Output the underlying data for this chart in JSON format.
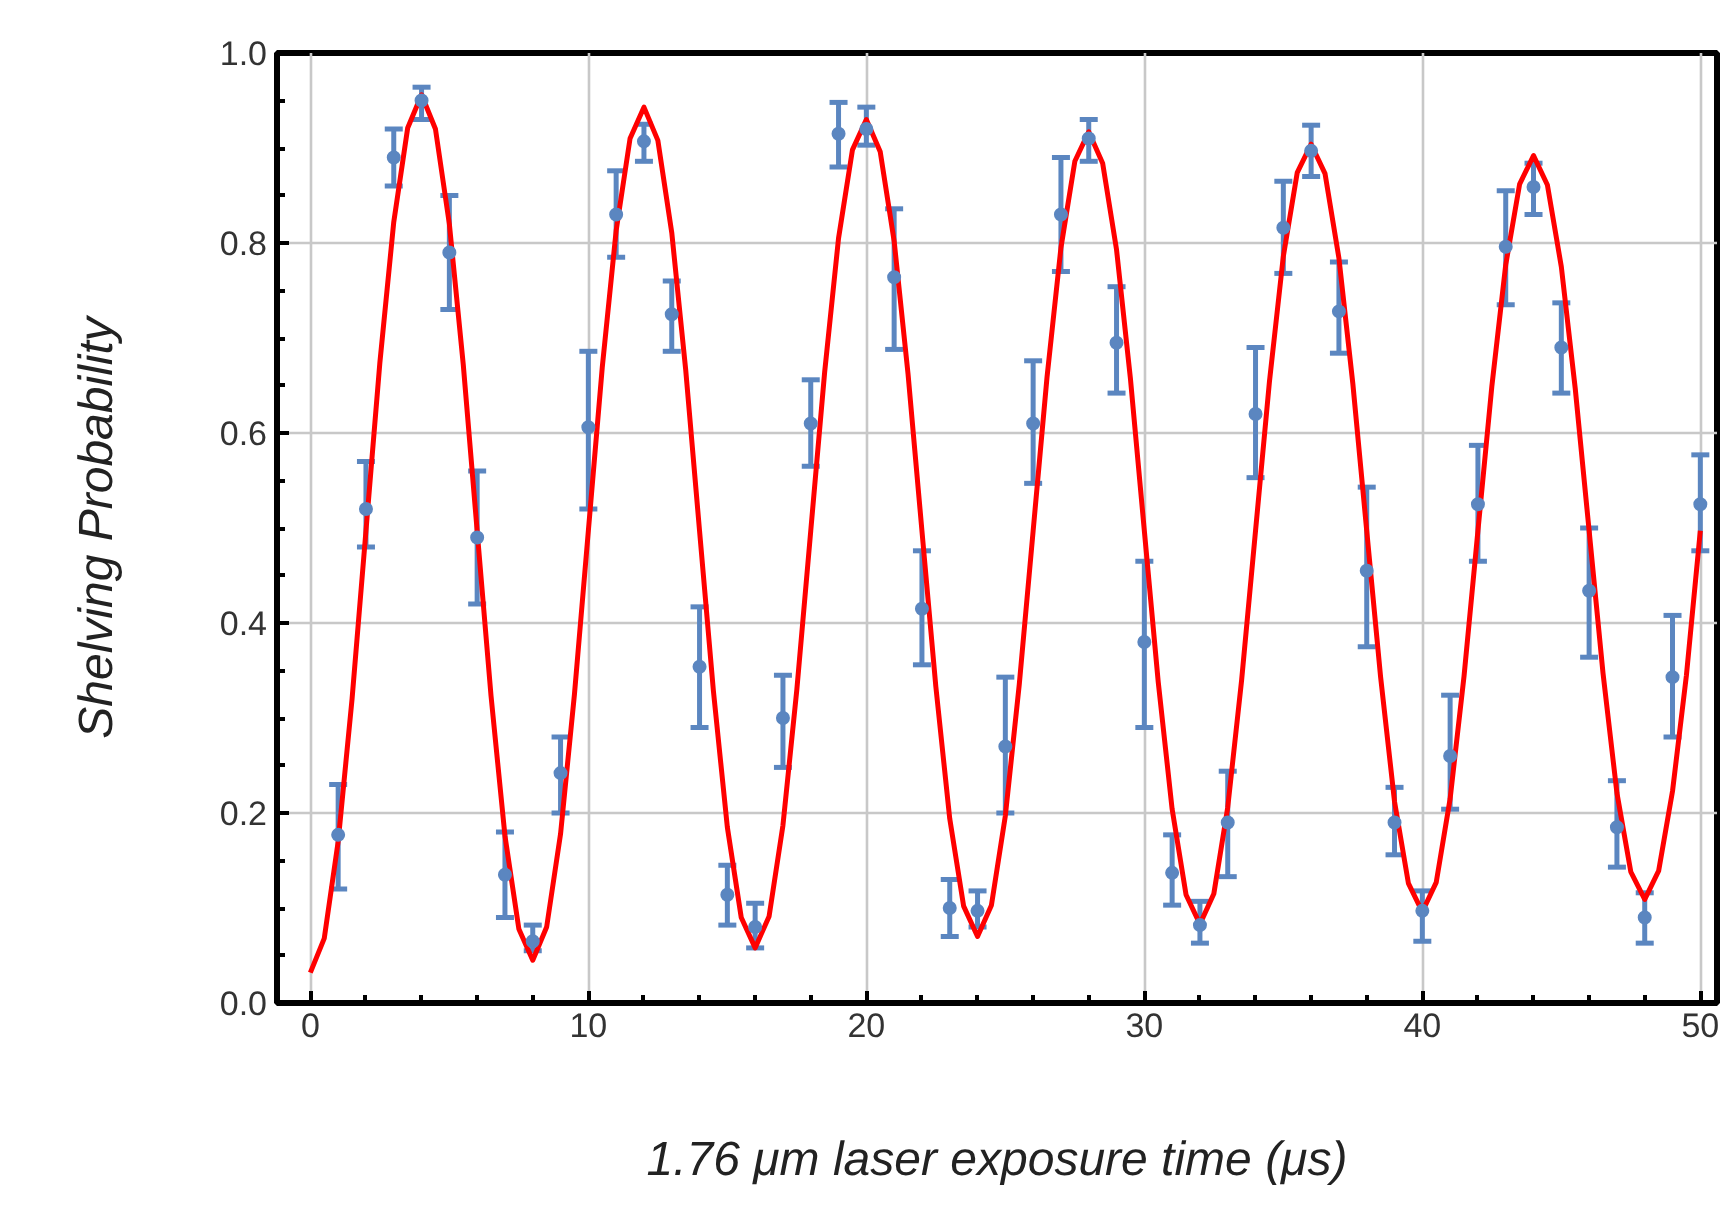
{
  "chart_data": {
    "type": "scatter",
    "xlabel": "1.76 μm laser exposure time (μs)",
    "ylabel": "Shelving Probability",
    "xlim": [
      -1.2,
      50.6
    ],
    "ylim": [
      0,
      1
    ],
    "xticks": [
      0,
      10,
      20,
      30,
      40,
      50
    ],
    "yticks": [
      {
        "value": 0,
        "label": "0.0"
      },
      {
        "value": 0.2,
        "label": "0.2"
      },
      {
        "value": 0.4,
        "label": "0.4"
      },
      {
        "value": 0.6,
        "label": "0.6"
      },
      {
        "value": 0.8,
        "label": "0.8"
      },
      {
        "value": 1,
        "label": "1.0"
      }
    ],
    "grid": true,
    "marker": "circle",
    "series": [
      {
        "color": "#5b86c0",
        "x": [
          1,
          2,
          3,
          4,
          5,
          6,
          7,
          8,
          9,
          10,
          11,
          12,
          13,
          14,
          15,
          16,
          17,
          18,
          19,
          20,
          21,
          22,
          23,
          24,
          25,
          26,
          27,
          28,
          29,
          30,
          31,
          32,
          33,
          34,
          35,
          36,
          37,
          38,
          39,
          40,
          41,
          42,
          43,
          44,
          45,
          46,
          47,
          48,
          49,
          50
        ],
        "values": [
          0.177,
          0.52,
          0.89,
          0.95,
          0.79,
          0.49,
          0.135,
          0.065,
          0.242,
          0.606,
          0.83,
          0.907,
          0.725,
          0.354,
          0.114,
          0.08,
          0.3,
          0.61,
          0.915,
          0.92,
          0.764,
          0.415,
          0.1,
          0.097,
          0.27,
          0.61,
          0.83,
          0.91,
          0.695,
          0.38,
          0.137,
          0.082,
          0.19,
          0.62,
          0.816,
          0.897,
          0.728,
          0.455,
          0.19,
          0.097,
          0.26,
          0.525,
          0.796,
          0.859,
          0.69,
          0.434,
          0.185,
          0.09,
          0.343,
          0.525
        ],
        "errors": [
          [
            0.12,
            0.23
          ],
          [
            0.48,
            0.57
          ],
          [
            0.86,
            0.92
          ],
          [
            0.93,
            0.964
          ],
          [
            0.73,
            0.85
          ],
          [
            0.42,
            0.56
          ],
          [
            0.09,
            0.18
          ],
          [
            0.055,
            0.082
          ],
          [
            0.2,
            0.28
          ],
          [
            0.52,
            0.686
          ],
          [
            0.785,
            0.876
          ],
          [
            0.886,
            0.925
          ],
          [
            0.686,
            0.76
          ],
          [
            0.29,
            0.417
          ],
          [
            0.082,
            0.145
          ],
          [
            0.058,
            0.105
          ],
          [
            0.248,
            0.345
          ],
          [
            0.565,
            0.656
          ],
          [
            0.88,
            0.948
          ],
          [
            0.903,
            0.943
          ],
          [
            0.688,
            0.836
          ],
          [
            0.356,
            0.476
          ],
          [
            0.07,
            0.13
          ],
          [
            0.08,
            0.118
          ],
          [
            0.2,
            0.343
          ],
          [
            0.547,
            0.676
          ],
          [
            0.77,
            0.89
          ],
          [
            0.886,
            0.93
          ],
          [
            0.642,
            0.754
          ],
          [
            0.29,
            0.465
          ],
          [
            0.103,
            0.177
          ],
          [
            0.063,
            0.107
          ],
          [
            0.133,
            0.244
          ],
          [
            0.553,
            0.69
          ],
          [
            0.768,
            0.865
          ],
          [
            0.87,
            0.924
          ],
          [
            0.684,
            0.78
          ],
          [
            0.375,
            0.543
          ],
          [
            0.156,
            0.227
          ],
          [
            0.065,
            0.118
          ],
          [
            0.204,
            0.324
          ],
          [
            0.465,
            0.587
          ],
          [
            0.735,
            0.855
          ],
          [
            0.83,
            0.884
          ],
          [
            0.642,
            0.737
          ],
          [
            0.364,
            0.5
          ],
          [
            0.143,
            0.234
          ],
          [
            0.063,
            0.116
          ],
          [
            0.28,
            0.408
          ],
          [
            0.476,
            0.577
          ]
        ]
      },
      {
        "type": "line",
        "color": "#ff0000",
        "marker": "none",
        "line_style": "solid",
        "x": [
          0,
          0.5,
          1,
          1.5,
          2,
          2.5,
          3,
          3.5,
          4,
          4.5,
          5,
          5.5,
          6,
          6.5,
          7,
          7.5,
          8,
          8.5,
          9,
          9.5,
          10,
          10.5,
          11,
          11.5,
          12,
          12.5,
          13,
          13.5,
          14,
          14.5,
          15,
          15.5,
          16,
          16.5,
          17,
          17.5,
          18,
          18.5,
          19,
          19.5,
          20,
          20.5,
          21,
          21.5,
          22,
          22.5,
          23,
          23.5,
          24,
          24.5,
          25,
          25.5,
          26,
          26.5,
          27,
          27.5,
          28,
          28.5,
          29,
          29.5,
          30,
          30.5,
          31,
          31.5,
          32,
          32.5,
          33,
          33.5,
          34,
          34.5,
          35,
          35.5,
          36,
          36.5,
          37,
          37.5,
          38,
          38.5,
          39,
          39.5,
          40,
          40.5,
          41,
          41.5,
          42,
          42.5,
          43,
          43.5,
          44,
          44.5,
          45,
          45.5,
          46,
          46.5,
          47,
          47.5,
          48,
          48.5,
          49,
          49.5,
          50
        ],
        "values": [
          0.032,
          0.068,
          0.17,
          0.32,
          0.497,
          0.674,
          0.822,
          0.921,
          0.956,
          0.92,
          0.82,
          0.672,
          0.497,
          0.323,
          0.176,
          0.078,
          0.045,
          0.08,
          0.178,
          0.325,
          0.497,
          0.669,
          0.813,
          0.91,
          0.943,
          0.908,
          0.811,
          0.667,
          0.497,
          0.328,
          0.185,
          0.09,
          0.058,
          0.091,
          0.187,
          0.33,
          0.497,
          0.664,
          0.805,
          0.898,
          0.93,
          0.896,
          0.802,
          0.662,
          0.497,
          0.333,
          0.194,
          0.102,
          0.07,
          0.103,
          0.197,
          0.335,
          0.497,
          0.659,
          0.795,
          0.886,
          0.917,
          0.884,
          0.793,
          0.657,
          0.497,
          0.338,
          0.204,
          0.114,
          0.083,
          0.115,
          0.206,
          0.34,
          0.497,
          0.654,
          0.786,
          0.874,
          0.904,
          0.873,
          0.784,
          0.652,
          0.497,
          0.343,
          0.212,
          0.126,
          0.096,
          0.127,
          0.215,
          0.344,
          0.497,
          0.649,
          0.777,
          0.862,
          0.892,
          0.861,
          0.775,
          0.647,
          0.497,
          0.347,
          0.221,
          0.138,
          0.109,
          0.139,
          0.223,
          0.345,
          0.497
        ]
      }
    ]
  }
}
